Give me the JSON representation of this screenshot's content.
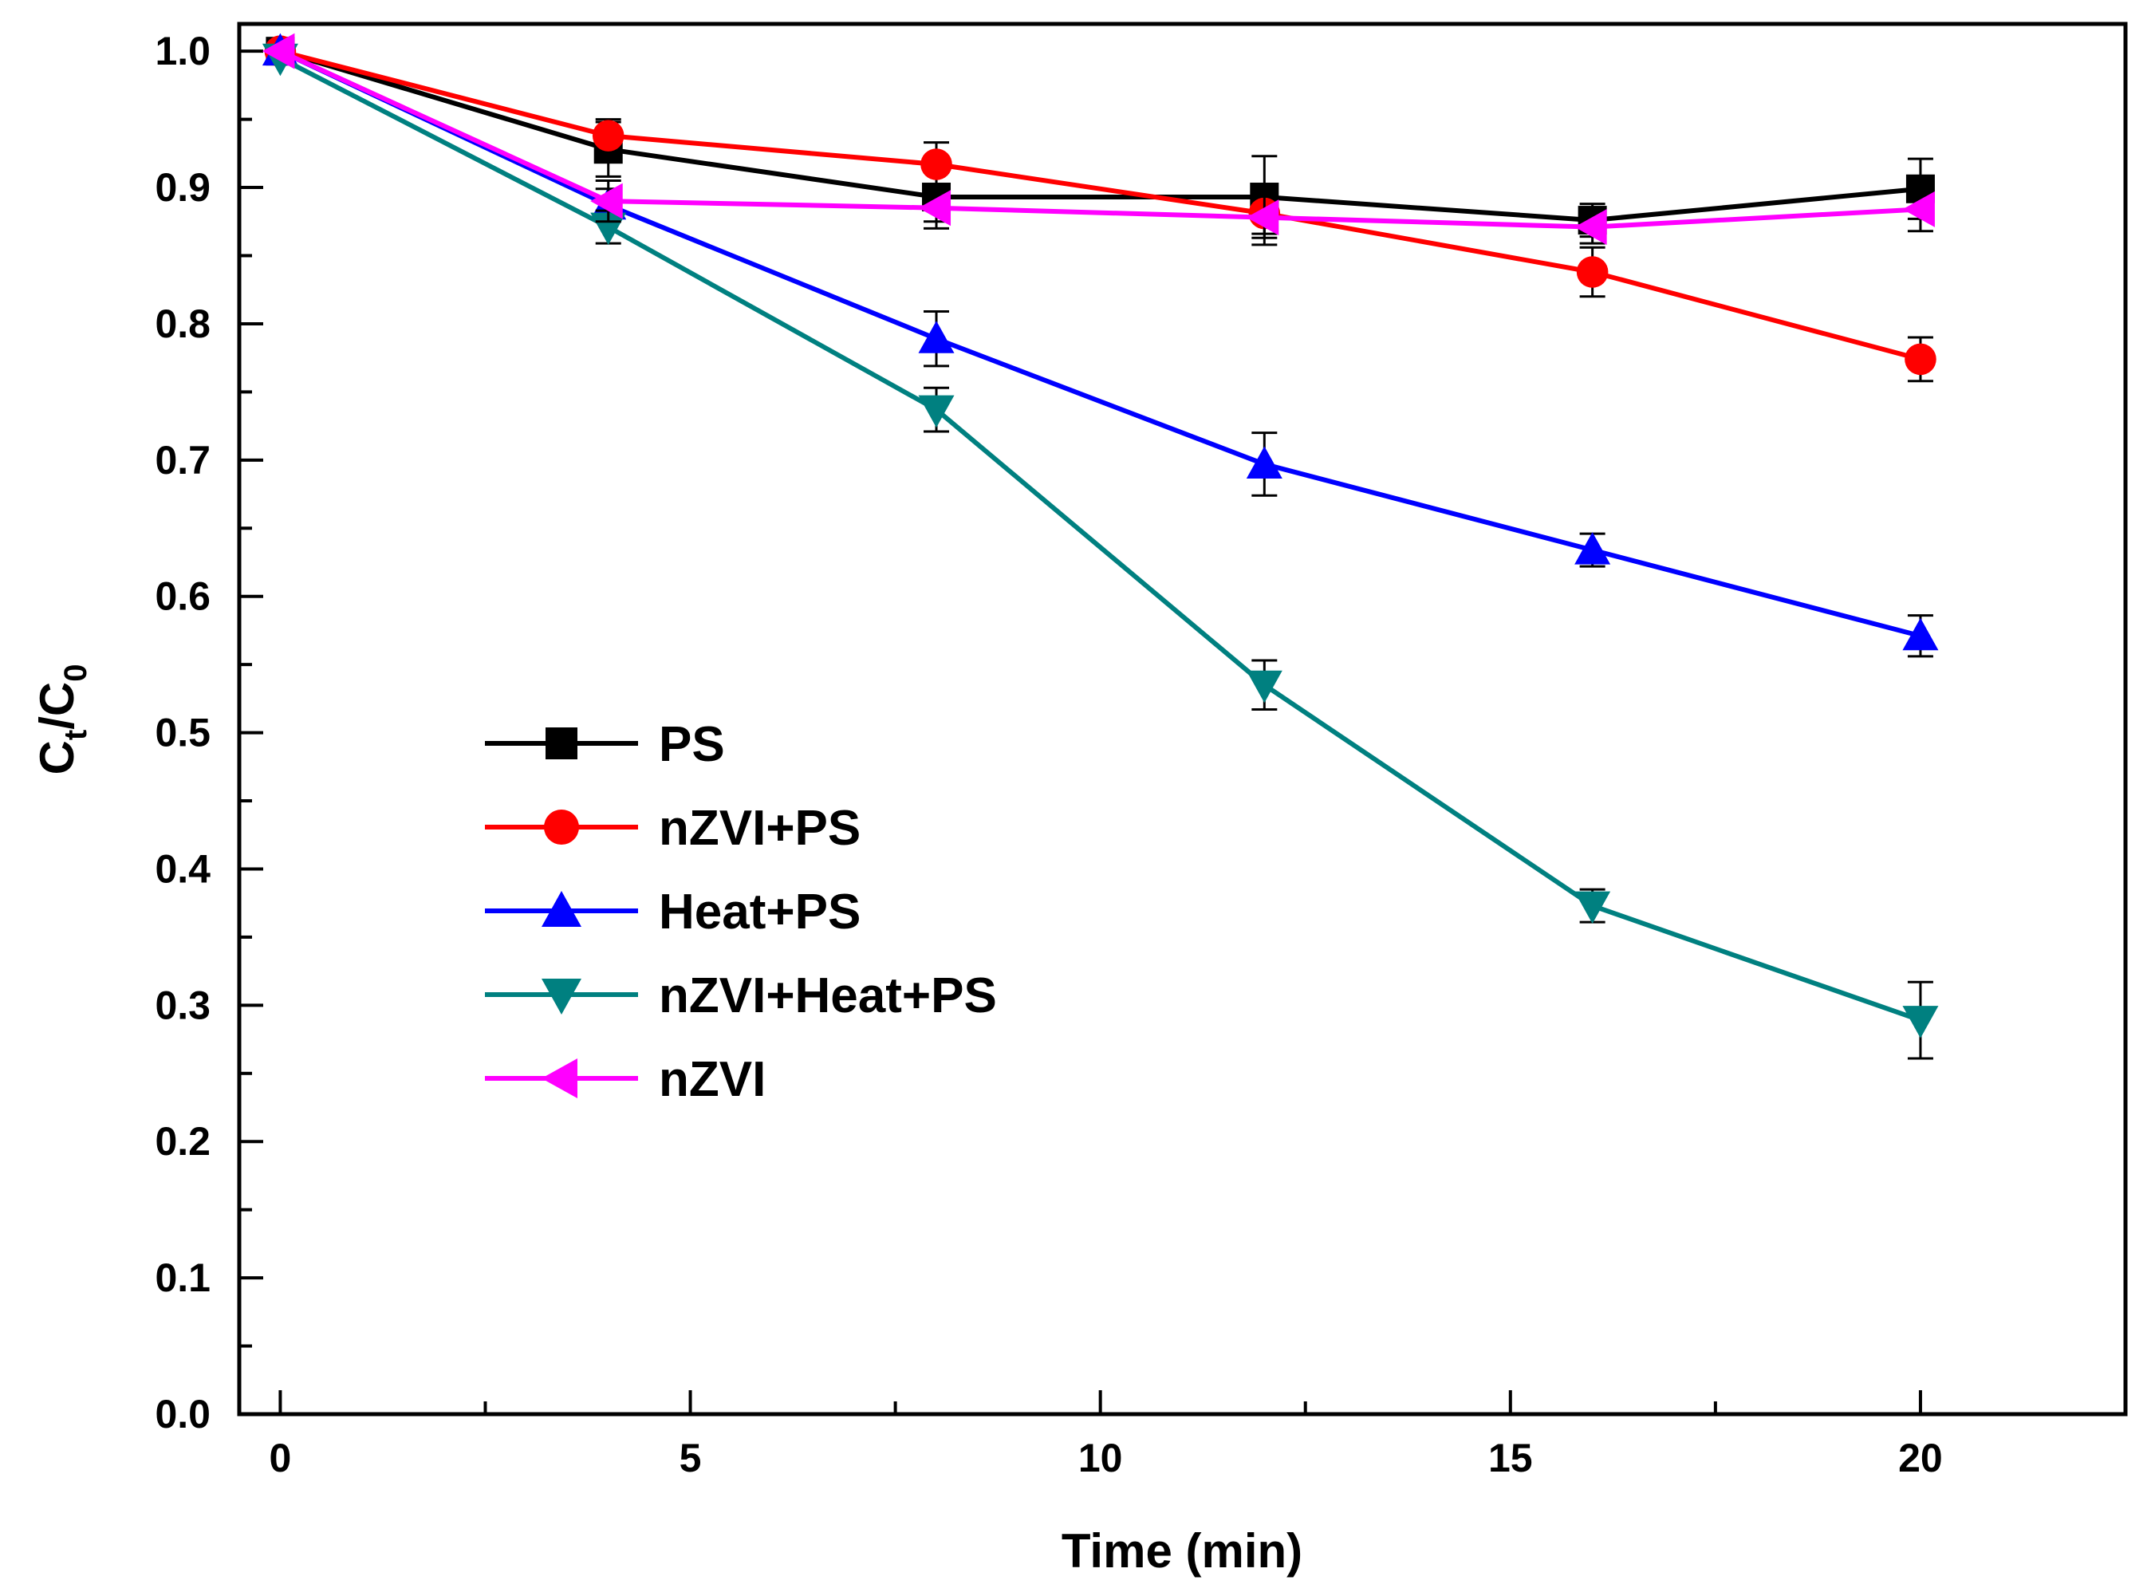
{
  "chart_data": {
    "type": "line",
    "title": "",
    "xlabel": "Time (min)",
    "ylabel": {
      "base1": "C",
      "sub1": "t",
      "slash": "/",
      "base2": "C",
      "sub2": "0"
    },
    "xlim": [
      -0.5,
      22.5
    ],
    "ylim": [
      0.0,
      1.02
    ],
    "xticks": [
      0,
      5,
      10,
      15,
      20
    ],
    "xtick_labels": [
      "0",
      "5",
      "10",
      "15",
      "20"
    ],
    "yticks": [
      0.0,
      0.1,
      0.2,
      0.3,
      0.4,
      0.5,
      0.6,
      0.7,
      0.8,
      0.9,
      1.0
    ],
    "ytick_labels": [
      "0.0",
      "0.1",
      "0.2",
      "0.3",
      "0.4",
      "0.5",
      "0.6",
      "0.7",
      "0.8",
      "0.9",
      "1.0"
    ],
    "grid": false,
    "legend_position": "center-left",
    "x": [
      0,
      4,
      8,
      12,
      16,
      20
    ],
    "series": [
      {
        "name": "PS",
        "color": "#000000",
        "marker": "square",
        "values": [
          1.0,
          0.928,
          0.893,
          0.893,
          0.876,
          0.899
        ],
        "errors": [
          0.0,
          0.02,
          0.018,
          0.03,
          0.012,
          0.022
        ]
      },
      {
        "name": "nZVI+PS",
        "color": "#ff0000",
        "marker": "circle",
        "values": [
          1.0,
          0.938,
          0.917,
          0.881,
          0.838,
          0.774
        ],
        "errors": [
          0.0,
          0.012,
          0.016,
          0.015,
          0.018,
          0.016
        ]
      },
      {
        "name": "Heat+PS",
        "color": "#0000ff",
        "marker": "triangle-up",
        "values": [
          1.0,
          0.887,
          0.789,
          0.697,
          0.634,
          0.571
        ],
        "errors": [
          0.0,
          0.012,
          0.02,
          0.023,
          0.012,
          0.015
        ]
      },
      {
        "name": "nZVI+Heat+PS",
        "color": "#008080",
        "marker": "triangle-down",
        "values": [
          0.995,
          0.871,
          0.737,
          0.535,
          0.373,
          0.289
        ],
        "errors": [
          0.0,
          0.012,
          0.016,
          0.018,
          0.012,
          0.028
        ]
      },
      {
        "name": "nZVI",
        "color": "#ff00ff",
        "marker": "triangle-left",
        "values": [
          1.0,
          0.89,
          0.885,
          0.878,
          0.871,
          0.884
        ],
        "errors": [
          0.0,
          0.015,
          0.015,
          0.02,
          0.012,
          0.016
        ]
      }
    ]
  }
}
